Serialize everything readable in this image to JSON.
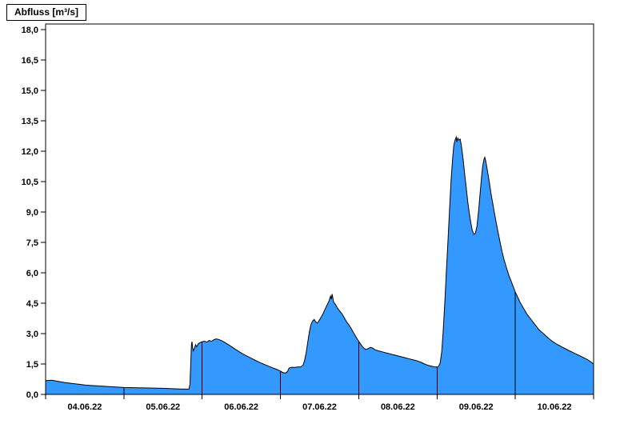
{
  "header": {
    "title": "Abfluss [m³/s]"
  },
  "colors": {
    "fill": "#3399FF",
    "line": "#000000",
    "frame": "#000000",
    "background": "#FFFFFF"
  },
  "chart_data": {
    "type": "area",
    "title": "Abfluss [m³/s]",
    "ylabel": "Abfluss [m³/s]",
    "xlabel": "",
    "ylim": [
      0,
      18
    ],
    "x_days": 7,
    "grid": "vertical-day-lines-clipped-to-area",
    "legend": "none",
    "y_tick_labels": [
      "0,0",
      "1,5",
      "3,0",
      "4,5",
      "6,0",
      "7,5",
      "9,0",
      "10,5",
      "12,0",
      "13,5",
      "15,0",
      "16,5",
      "18,0"
    ],
    "y_tick_values": [
      0,
      1.5,
      3,
      4.5,
      6,
      7.5,
      9,
      10.5,
      12,
      13.5,
      15,
      16.5,
      18
    ],
    "x_tick_labels": [
      "04.06.22",
      "05.06.22",
      "06.06.22",
      "07.06.22",
      "08.06.22",
      "09.06.22",
      "10.06.22"
    ],
    "day_line_positions": [
      1,
      2,
      3,
      4,
      5,
      6
    ],
    "points": [
      [
        0,
        0.68
      ],
      [
        0.08,
        0.7
      ],
      [
        0.16,
        0.64
      ],
      [
        0.25,
        0.58
      ],
      [
        0.33,
        0.54
      ],
      [
        0.42,
        0.5
      ],
      [
        0.5,
        0.46
      ],
      [
        0.58,
        0.44
      ],
      [
        0.67,
        0.42
      ],
      [
        0.75,
        0.4
      ],
      [
        0.83,
        0.38
      ],
      [
        0.92,
        0.36
      ],
      [
        1,
        0.34
      ],
      [
        1.12,
        0.33
      ],
      [
        1.25,
        0.32
      ],
      [
        1.37,
        0.31
      ],
      [
        1.5,
        0.3
      ],
      [
        1.62,
        0.28
      ],
      [
        1.72,
        0.27
      ],
      [
        1.8,
        0.26
      ],
      [
        1.83,
        0.26
      ],
      [
        1.845,
        0.5
      ],
      [
        1.855,
        1.6
      ],
      [
        1.863,
        2.45
      ],
      [
        1.87,
        2.6
      ],
      [
        1.878,
        2.3
      ],
      [
        1.886,
        2.15
      ],
      [
        1.9,
        2.25
      ],
      [
        1.915,
        2.45
      ],
      [
        1.93,
        2.35
      ],
      [
        1.95,
        2.5
      ],
      [
        1.97,
        2.55
      ],
      [
        2,
        2.6
      ],
      [
        2.03,
        2.62
      ],
      [
        2.06,
        2.58
      ],
      [
        2.09,
        2.66
      ],
      [
        2.12,
        2.62
      ],
      [
        2.15,
        2.7
      ],
      [
        2.18,
        2.74
      ],
      [
        2.21,
        2.71
      ],
      [
        2.24,
        2.67
      ],
      [
        2.27,
        2.61
      ],
      [
        2.3,
        2.54
      ],
      [
        2.34,
        2.44
      ],
      [
        2.38,
        2.34
      ],
      [
        2.42,
        2.24
      ],
      [
        2.46,
        2.14
      ],
      [
        2.5,
        2.04
      ],
      [
        2.55,
        1.94
      ],
      [
        2.6,
        1.84
      ],
      [
        2.65,
        1.74
      ],
      [
        2.7,
        1.64
      ],
      [
        2.75,
        1.55
      ],
      [
        2.8,
        1.47
      ],
      [
        2.85,
        1.39
      ],
      [
        2.9,
        1.31
      ],
      [
        2.95,
        1.24
      ],
      [
        3,
        1.15
      ],
      [
        3.03,
        1.08
      ],
      [
        3.06,
        1.05
      ],
      [
        3.09,
        1.12
      ],
      [
        3.11,
        1.3
      ],
      [
        3.14,
        1.34
      ],
      [
        3.18,
        1.33
      ],
      [
        3.22,
        1.35
      ],
      [
        3.26,
        1.36
      ],
      [
        3.29,
        1.45
      ],
      [
        3.31,
        1.7
      ],
      [
        3.33,
        2.1
      ],
      [
        3.35,
        2.6
      ],
      [
        3.37,
        3.1
      ],
      [
        3.39,
        3.45
      ],
      [
        3.41,
        3.62
      ],
      [
        3.43,
        3.7
      ],
      [
        3.45,
        3.58
      ],
      [
        3.47,
        3.52
      ],
      [
        3.49,
        3.62
      ],
      [
        3.51,
        3.75
      ],
      [
        3.54,
        3.95
      ],
      [
        3.57,
        4.2
      ],
      [
        3.6,
        4.45
      ],
      [
        3.62,
        4.6
      ],
      [
        3.64,
        4.85
      ],
      [
        3.65,
        4.7
      ],
      [
        3.66,
        4.95
      ],
      [
        3.67,
        4.75
      ],
      [
        3.68,
        4.55
      ],
      [
        3.7,
        4.45
      ],
      [
        3.73,
        4.25
      ],
      [
        3.76,
        4.1
      ],
      [
        3.79,
        3.95
      ],
      [
        3.82,
        3.75
      ],
      [
        3.85,
        3.55
      ],
      [
        3.88,
        3.4
      ],
      [
        3.91,
        3.2
      ],
      [
        3.94,
        3
      ],
      [
        3.97,
        2.8
      ],
      [
        4,
        2.62
      ],
      [
        4.03,
        2.45
      ],
      [
        4.06,
        2.3
      ],
      [
        4.09,
        2.22
      ],
      [
        4.12,
        2.26
      ],
      [
        4.15,
        2.32
      ],
      [
        4.18,
        2.28
      ],
      [
        4.21,
        2.2
      ],
      [
        4.25,
        2.15
      ],
      [
        4.3,
        2.1
      ],
      [
        4.35,
        2.05
      ],
      [
        4.4,
        2
      ],
      [
        4.45,
        1.95
      ],
      [
        4.5,
        1.9
      ],
      [
        4.55,
        1.85
      ],
      [
        4.6,
        1.8
      ],
      [
        4.65,
        1.75
      ],
      [
        4.7,
        1.7
      ],
      [
        4.75,
        1.65
      ],
      [
        4.8,
        1.58
      ],
      [
        4.84,
        1.5
      ],
      [
        4.88,
        1.44
      ],
      [
        4.92,
        1.4
      ],
      [
        4.96,
        1.36
      ],
      [
        5,
        1.35
      ],
      [
        5.02,
        1.38
      ],
      [
        5.04,
        1.55
      ],
      [
        5.06,
        2.1
      ],
      [
        5.08,
        3.2
      ],
      [
        5.1,
        4.6
      ],
      [
        5.12,
        6.1
      ],
      [
        5.14,
        7.6
      ],
      [
        5.16,
        9.1
      ],
      [
        5.18,
        10.6
      ],
      [
        5.2,
        11.7
      ],
      [
        5.215,
        12.3
      ],
      [
        5.23,
        12.55
      ],
      [
        5.245,
        12.7
      ],
      [
        5.255,
        12.45
      ],
      [
        5.265,
        12.65
      ],
      [
        5.28,
        12.55
      ],
      [
        5.295,
        12.6
      ],
      [
        5.31,
        12.3
      ],
      [
        5.33,
        11.7
      ],
      [
        5.35,
        11
      ],
      [
        5.37,
        10.3
      ],
      [
        5.39,
        9.6
      ],
      [
        5.41,
        9
      ],
      [
        5.43,
        8.5
      ],
      [
        5.45,
        8.1
      ],
      [
        5.47,
        7.9
      ],
      [
        5.49,
        7.95
      ],
      [
        5.51,
        8.3
      ],
      [
        5.53,
        9
      ],
      [
        5.55,
        9.9
      ],
      [
        5.57,
        10.8
      ],
      [
        5.585,
        11.3
      ],
      [
        5.6,
        11.6
      ],
      [
        5.61,
        11.7
      ],
      [
        5.62,
        11.55
      ],
      [
        5.63,
        11.35
      ],
      [
        5.65,
        10.9
      ],
      [
        5.67,
        10.4
      ],
      [
        5.69,
        9.9
      ],
      [
        5.71,
        9.45
      ],
      [
        5.74,
        8.8
      ],
      [
        5.77,
        8.2
      ],
      [
        5.8,
        7.6
      ],
      [
        5.83,
        7.05
      ],
      [
        5.86,
        6.6
      ],
      [
        5.89,
        6.2
      ],
      [
        5.92,
        5.85
      ],
      [
        5.95,
        5.55
      ],
      [
        5.98,
        5.25
      ],
      [
        6,
        5.05
      ],
      [
        6.03,
        4.8
      ],
      [
        6.06,
        4.55
      ],
      [
        6.09,
        4.35
      ],
      [
        6.12,
        4.15
      ],
      [
        6.15,
        3.95
      ],
      [
        6.18,
        3.8
      ],
      [
        6.21,
        3.65
      ],
      [
        6.24,
        3.5
      ],
      [
        6.27,
        3.35
      ],
      [
        6.3,
        3.2
      ],
      [
        6.33,
        3.1
      ],
      [
        6.36,
        3
      ],
      [
        6.4,
        2.85
      ],
      [
        6.44,
        2.72
      ],
      [
        6.48,
        2.6
      ],
      [
        6.52,
        2.5
      ],
      [
        6.56,
        2.42
      ],
      [
        6.6,
        2.33
      ],
      [
        6.64,
        2.25
      ],
      [
        6.68,
        2.17
      ],
      [
        6.72,
        2.1
      ],
      [
        6.76,
        2.02
      ],
      [
        6.8,
        1.95
      ],
      [
        6.84,
        1.88
      ],
      [
        6.88,
        1.8
      ],
      [
        6.92,
        1.72
      ],
      [
        6.96,
        1.62
      ],
      [
        7,
        1.5
      ]
    ]
  }
}
